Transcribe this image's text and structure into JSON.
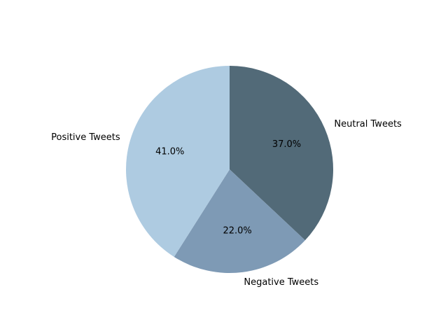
{
  "chart_data": {
    "type": "pie",
    "title": "",
    "labels": [
      "Neutral Tweets",
      "Negative Tweets",
      "Positive Tweets"
    ],
    "values": [
      37.0,
      22.0,
      41.0
    ],
    "percent_labels": [
      "37.0%",
      "22.0%",
      "41.0%"
    ],
    "colors": [
      "#526a78",
      "#7e9ab5",
      "#aecbe1"
    ],
    "start_angle_deg": 90,
    "direction": "clockwise"
  }
}
